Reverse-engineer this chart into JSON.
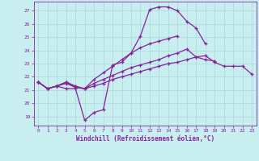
{
  "xlabel": "Windchill (Refroidissement éolien,°C)",
  "xlim": [
    -0.5,
    23.5
  ],
  "ylim": [
    18.3,
    27.7
  ],
  "yticks": [
    19,
    20,
    21,
    22,
    23,
    24,
    25,
    26,
    27
  ],
  "xticks": [
    0,
    1,
    2,
    3,
    4,
    5,
    6,
    7,
    8,
    9,
    10,
    11,
    12,
    13,
    14,
    15,
    16,
    17,
    18,
    19,
    20,
    21,
    22,
    23
  ],
  "bg_color": "#c8eef0",
  "grid_color": "#a8d8da",
  "line_color": "#882299",
  "line_width": 0.9,
  "marker": "+",
  "marker_size": 3.5,
  "curves": [
    {
      "x": [
        0,
        1,
        2,
        3,
        4,
        5,
        6,
        7,
        8,
        9,
        10,
        11,
        12,
        13,
        14,
        15,
        16,
        17,
        18
      ],
      "y": [
        21.6,
        21.1,
        21.3,
        21.1,
        21.1,
        18.7,
        19.3,
        19.5,
        22.9,
        23.1,
        23.8,
        25.1,
        27.1,
        27.3,
        27.3,
        27.0,
        26.2,
        25.7,
        24.5
      ]
    },
    {
      "x": [
        0,
        1,
        2,
        3,
        4,
        5,
        6,
        7,
        8,
        9,
        10,
        11,
        12,
        13,
        14,
        15,
        16,
        17,
        18,
        19,
        20,
        21,
        22,
        23
      ],
      "y": [
        21.6,
        21.1,
        21.3,
        21.5,
        21.2,
        21.1,
        21.3,
        21.5,
        21.8,
        22.0,
        22.2,
        22.4,
        22.6,
        22.8,
        23.0,
        23.1,
        23.3,
        23.5,
        23.6,
        23.1,
        22.8,
        22.8,
        22.8,
        22.2
      ]
    },
    {
      "x": [
        0,
        1,
        2,
        3,
        4,
        5,
        6,
        7,
        8,
        9,
        10,
        11,
        12,
        13,
        14,
        15,
        16,
        17,
        18,
        19,
        20,
        21,
        22,
        23
      ],
      "y": [
        21.6,
        21.1,
        21.3,
        21.6,
        21.2,
        21.1,
        21.5,
        21.8,
        22.1,
        22.4,
        22.7,
        22.9,
        23.1,
        23.3,
        23.6,
        23.8,
        24.1,
        23.5,
        23.3,
        23.2,
        null,
        null,
        null,
        null
      ]
    },
    {
      "x": [
        0,
        1,
        2,
        3,
        4,
        5,
        6,
        7,
        8,
        9,
        10,
        11,
        12,
        13,
        14,
        15,
        16,
        17
      ],
      "y": [
        21.6,
        21.1,
        21.3,
        21.6,
        21.3,
        21.1,
        21.8,
        22.3,
        22.8,
        23.3,
        23.8,
        24.2,
        24.5,
        24.7,
        24.9,
        25.1,
        null,
        null
      ]
    }
  ]
}
